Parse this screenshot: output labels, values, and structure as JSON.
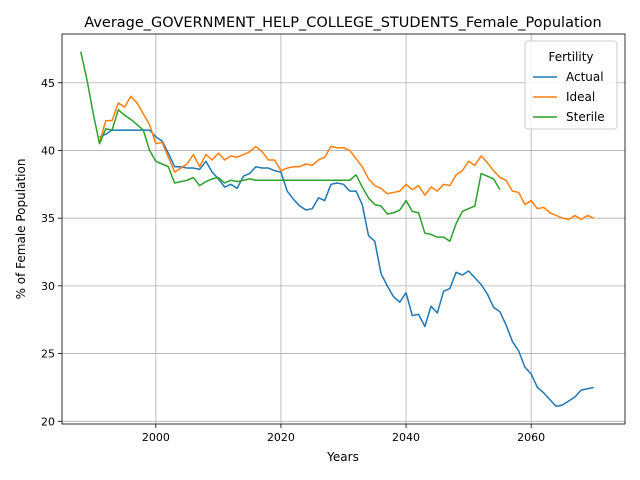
{
  "chart_data": {
    "type": "line",
    "title": "Average_GOVERNMENT_HELP_COLLEGE_STUDENTS_Female_Population",
    "xlabel": "Years",
    "ylabel": "% of Female Population",
    "xlim": [
      1985,
      2075
    ],
    "ylim": [
      19.8,
      48.6
    ],
    "xticks": [
      2000,
      2020,
      2040,
      2060
    ],
    "yticks": [
      20,
      25,
      30,
      35,
      40,
      45
    ],
    "grid": true,
    "legend": {
      "title": "Fertility",
      "placement": "top-right"
    },
    "series": [
      {
        "name": "Actual",
        "color": "#1f77b4",
        "points": [
          [
            1991,
            41.0
          ],
          [
            1992,
            41.2
          ],
          [
            1993,
            41.5
          ],
          [
            1994,
            41.5
          ],
          [
            1995,
            41.5
          ],
          [
            1996,
            41.5
          ],
          [
            1997,
            41.5
          ],
          [
            1998,
            41.5
          ],
          [
            1999,
            41.5
          ],
          [
            2000,
            41.0
          ],
          [
            2001,
            40.7
          ],
          [
            2002,
            39.8
          ],
          [
            2003,
            38.8
          ],
          [
            2004,
            38.8
          ],
          [
            2005,
            38.7
          ],
          [
            2006,
            38.7
          ],
          [
            2007,
            38.6
          ],
          [
            2008,
            39.2
          ],
          [
            2009,
            38.4
          ],
          [
            2010,
            37.9
          ],
          [
            2011,
            37.3
          ],
          [
            2012,
            37.5
          ],
          [
            2013,
            37.2
          ],
          [
            2014,
            38.1
          ],
          [
            2015,
            38.3
          ],
          [
            2016,
            38.8
          ],
          [
            2017,
            38.7
          ],
          [
            2018,
            38.7
          ],
          [
            2019,
            38.5
          ],
          [
            2020,
            38.4
          ],
          [
            2021,
            37.0
          ],
          [
            2022,
            36.4
          ],
          [
            2023,
            35.9
          ],
          [
            2024,
            35.6
          ],
          [
            2025,
            35.7
          ],
          [
            2026,
            36.5
          ],
          [
            2027,
            36.3
          ],
          [
            2028,
            37.5
          ],
          [
            2029,
            37.6
          ],
          [
            2030,
            37.5
          ],
          [
            2031,
            37.0
          ],
          [
            2032,
            37.0
          ],
          [
            2033,
            36.0
          ],
          [
            2034,
            33.7
          ],
          [
            2035,
            33.3
          ],
          [
            2036,
            30.9
          ],
          [
            2037,
            30.0
          ],
          [
            2038,
            29.2
          ],
          [
            2039,
            28.8
          ],
          [
            2040,
            29.5
          ],
          [
            2041,
            27.8
          ],
          [
            2042,
            27.9
          ],
          [
            2043,
            27.0
          ],
          [
            2044,
            28.5
          ],
          [
            2045,
            28.0
          ],
          [
            2046,
            29.6
          ],
          [
            2047,
            29.8
          ],
          [
            2048,
            31.0
          ],
          [
            2049,
            30.8
          ],
          [
            2050,
            31.1
          ],
          [
            2051,
            30.6
          ],
          [
            2052,
            30.1
          ],
          [
            2053,
            29.4
          ],
          [
            2054,
            28.4
          ],
          [
            2055,
            28.1
          ],
          [
            2056,
            27.1
          ],
          [
            2057,
            25.9
          ],
          [
            2058,
            25.2
          ],
          [
            2059,
            24.0
          ],
          [
            2060,
            23.5
          ],
          [
            2061,
            22.5
          ],
          [
            2062,
            22.1
          ],
          [
            2063,
            21.6
          ],
          [
            2064,
            21.1
          ],
          [
            2065,
            21.2
          ],
          [
            2066,
            21.5
          ],
          [
            2067,
            21.8
          ],
          [
            2068,
            22.3
          ],
          [
            2069,
            22.4
          ],
          [
            2070,
            22.5
          ]
        ]
      },
      {
        "name": "Ideal",
        "color": "#ff7f0e",
        "points": [
          [
            1991,
            40.6
          ],
          [
            1992,
            42.2
          ],
          [
            1993,
            42.2
          ],
          [
            1994,
            43.5
          ],
          [
            1995,
            43.2
          ],
          [
            1996,
            44.0
          ],
          [
            1997,
            43.5
          ],
          [
            1998,
            42.7
          ],
          [
            1999,
            41.9
          ],
          [
            2000,
            40.5
          ],
          [
            2001,
            40.6
          ],
          [
            2002,
            39.5
          ],
          [
            2003,
            38.4
          ],
          [
            2004,
            38.7
          ],
          [
            2005,
            39.0
          ],
          [
            2006,
            39.7
          ],
          [
            2007,
            38.8
          ],
          [
            2008,
            39.7
          ],
          [
            2009,
            39.3
          ],
          [
            2010,
            39.8
          ],
          [
            2011,
            39.3
          ],
          [
            2012,
            39.6
          ],
          [
            2013,
            39.5
          ],
          [
            2014,
            39.7
          ],
          [
            2015,
            39.9
          ],
          [
            2016,
            40.3
          ],
          [
            2017,
            39.9
          ],
          [
            2018,
            39.3
          ],
          [
            2019,
            39.3
          ],
          [
            2020,
            38.5
          ],
          [
            2021,
            38.7
          ],
          [
            2022,
            38.8
          ],
          [
            2023,
            38.8
          ],
          [
            2024,
            39.0
          ],
          [
            2025,
            38.9
          ],
          [
            2026,
            39.3
          ],
          [
            2027,
            39.5
          ],
          [
            2028,
            40.3
          ],
          [
            2029,
            40.2
          ],
          [
            2030,
            40.2
          ],
          [
            2031,
            40.0
          ],
          [
            2032,
            39.4
          ],
          [
            2033,
            38.8
          ],
          [
            2034,
            37.9
          ],
          [
            2035,
            37.4
          ],
          [
            2036,
            37.2
          ],
          [
            2037,
            36.8
          ],
          [
            2038,
            36.9
          ],
          [
            2039,
            37.0
          ],
          [
            2040,
            37.5
          ],
          [
            2041,
            37.1
          ],
          [
            2042,
            37.4
          ],
          [
            2043,
            36.7
          ],
          [
            2044,
            37.3
          ],
          [
            2045,
            37.0
          ],
          [
            2046,
            37.5
          ],
          [
            2047,
            37.4
          ],
          [
            2048,
            38.2
          ],
          [
            2049,
            38.5
          ],
          [
            2050,
            39.2
          ],
          [
            2051,
            38.9
          ],
          [
            2052,
            39.6
          ],
          [
            2053,
            39.1
          ],
          [
            2054,
            38.5
          ],
          [
            2055,
            38.0
          ],
          [
            2056,
            37.8
          ],
          [
            2057,
            37.0
          ],
          [
            2058,
            36.9
          ],
          [
            2059,
            36.0
          ],
          [
            2060,
            36.3
          ],
          [
            2061,
            35.7
          ],
          [
            2062,
            35.8
          ],
          [
            2063,
            35.4
          ],
          [
            2064,
            35.2
          ],
          [
            2065,
            35.0
          ],
          [
            2066,
            34.9
          ],
          [
            2067,
            35.2
          ],
          [
            2068,
            34.9
          ],
          [
            2069,
            35.2
          ],
          [
            2070,
            35.0
          ]
        ]
      },
      {
        "name": "Sterile",
        "color": "#2ca02c",
        "points": [
          [
            1988,
            47.3
          ],
          [
            1989,
            45.2
          ],
          [
            1990,
            42.7
          ],
          [
            1991,
            40.5
          ],
          [
            1992,
            41.6
          ],
          [
            1993,
            41.5
          ],
          [
            1994,
            43.0
          ],
          [
            1995,
            42.6
          ],
          [
            1996,
            42.3
          ],
          [
            1997,
            41.9
          ],
          [
            1998,
            41.5
          ],
          [
            1999,
            40.0
          ],
          [
            2000,
            39.2
          ],
          [
            2001,
            39.0
          ],
          [
            2002,
            38.8
          ],
          [
            2003,
            37.6
          ],
          [
            2004,
            37.7
          ],
          [
            2005,
            37.8
          ],
          [
            2006,
            38.0
          ],
          [
            2007,
            37.4
          ],
          [
            2008,
            37.7
          ],
          [
            2009,
            37.9
          ],
          [
            2010,
            38.0
          ],
          [
            2011,
            37.6
          ],
          [
            2012,
            37.8
          ],
          [
            2013,
            37.7
          ],
          [
            2014,
            37.8
          ],
          [
            2015,
            37.9
          ],
          [
            2016,
            37.8
          ],
          [
            2017,
            37.8
          ],
          [
            2018,
            37.8
          ],
          [
            2019,
            37.8
          ],
          [
            2020,
            37.8
          ],
          [
            2021,
            37.8
          ],
          [
            2022,
            37.8
          ],
          [
            2023,
            37.8
          ],
          [
            2024,
            37.8
          ],
          [
            2025,
            37.8
          ],
          [
            2026,
            37.8
          ],
          [
            2027,
            37.8
          ],
          [
            2028,
            37.8
          ],
          [
            2029,
            37.8
          ],
          [
            2030,
            37.8
          ],
          [
            2031,
            37.8
          ],
          [
            2032,
            38.2
          ],
          [
            2033,
            37.3
          ],
          [
            2034,
            36.5
          ],
          [
            2035,
            36.0
          ],
          [
            2036,
            35.9
          ],
          [
            2037,
            35.3
          ],
          [
            2038,
            35.4
          ],
          [
            2039,
            35.6
          ],
          [
            2040,
            36.3
          ],
          [
            2041,
            35.5
          ],
          [
            2042,
            35.4
          ],
          [
            2043,
            33.9
          ],
          [
            2044,
            33.8
          ],
          [
            2045,
            33.6
          ],
          [
            2046,
            33.6
          ],
          [
            2047,
            33.3
          ],
          [
            2048,
            34.6
          ],
          [
            2049,
            35.5
          ],
          [
            2050,
            35.7
          ],
          [
            2051,
            35.9
          ],
          [
            2052,
            38.3
          ],
          [
            2053,
            38.1
          ],
          [
            2054,
            37.9
          ],
          [
            2055,
            37.1
          ]
        ]
      }
    ]
  }
}
